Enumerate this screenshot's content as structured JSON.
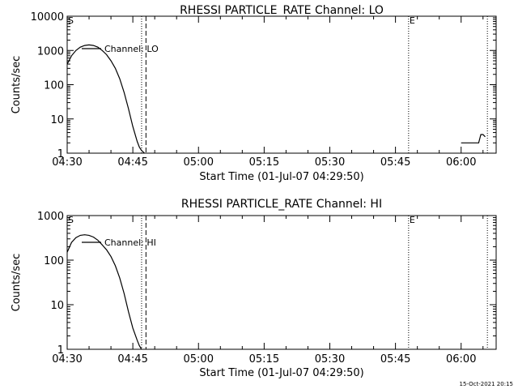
{
  "footer": {
    "timestamp": "15-Oct-2021 20:15"
  },
  "chart_data": [
    {
      "type": "line",
      "title": "RHESSI PARTICLE_RATE Channel: LO",
      "xlabel": "Start Time (01-Jul-07 04:29:50)",
      "ylabel": "Counts/sec",
      "yscale": "log",
      "ylim": [
        1,
        10000
      ],
      "xlim": [
        "04:30",
        "06:08"
      ],
      "x_ticks": [
        "04:30",
        "04:45",
        "05:00",
        "05:15",
        "05:30",
        "05:45",
        "06:00"
      ],
      "y_ticks": [
        "1",
        "10",
        "100",
        "1000",
        "10000"
      ],
      "legend": "Channel: LO",
      "legend_placement": "top-left",
      "markers": [
        {
          "label": "S",
          "time": "04:30"
        },
        {
          "label": "E",
          "time": "05:48"
        }
      ],
      "vlines": [
        {
          "time": "04:47",
          "style": "dotted"
        },
        {
          "time": "04:48",
          "style": "dashed"
        },
        {
          "time": "05:48",
          "style": "dotted"
        },
        {
          "time": "06:06",
          "style": "dotted"
        }
      ],
      "series": [
        {
          "name": "Channel: LO",
          "segments": [
            {
              "x": [
                "04:30",
                "04:31",
                "04:32",
                "04:33",
                "04:34",
                "04:35",
                "04:36",
                "04:37",
                "04:38",
                "04:39",
                "04:40",
                "04:41",
                "04:42",
                "04:43",
                "04:44",
                "04:45",
                "04:46",
                "04:46:30",
                "04:47",
                "04:47:20",
                "04:47:40"
              ],
              "y": [
                400,
                700,
                1000,
                1250,
                1400,
                1450,
                1400,
                1250,
                1000,
                750,
                500,
                300,
                150,
                60,
                20,
                6,
                2.2,
                1.5,
                1.2,
                1.1,
                1
              ]
            },
            {
              "x": [
                "06:00",
                "06:04",
                "06:04:30",
                "06:05",
                "06:05:30"
              ],
              "y": [
                2,
                2,
                3.5,
                3.5,
                3
              ]
            }
          ]
        }
      ]
    },
    {
      "type": "line",
      "title": "RHESSI PARTICLE_RATE Channel: HI",
      "xlabel": "Start Time (01-Jul-07 04:29:50)",
      "ylabel": "Counts/sec",
      "yscale": "log",
      "ylim": [
        1,
        1000
      ],
      "xlim": [
        "04:30",
        "06:08"
      ],
      "x_ticks": [
        "04:30",
        "04:45",
        "05:00",
        "05:15",
        "05:30",
        "05:45",
        "06:00"
      ],
      "y_ticks": [
        "1",
        "10",
        "100",
        "1000"
      ],
      "legend": "Channel: HI",
      "legend_placement": "top-left",
      "markers": [
        {
          "label": "S",
          "time": "04:30"
        },
        {
          "label": "E",
          "time": "05:48"
        }
      ],
      "vlines": [
        {
          "time": "04:47",
          "style": "dotted"
        },
        {
          "time": "04:48",
          "style": "dashed"
        },
        {
          "time": "05:48",
          "style": "dotted"
        },
        {
          "time": "06:06",
          "style": "dotted"
        }
      ],
      "series": [
        {
          "name": "Channel: HI",
          "segments": [
            {
              "x": [
                "04:30",
                "04:31",
                "04:32",
                "04:33",
                "04:34",
                "04:35",
                "04:36",
                "04:37",
                "04:38",
                "04:39",
                "04:40",
                "04:41",
                "04:42",
                "04:43",
                "04:44",
                "04:45",
                "04:46",
                "04:46:30",
                "04:47"
              ],
              "y": [
                150,
                250,
                320,
                360,
                370,
                360,
                330,
                280,
                220,
                170,
                120,
                75,
                40,
                18,
                7,
                3,
                1.6,
                1.2,
                1
              ]
            }
          ]
        }
      ]
    }
  ]
}
